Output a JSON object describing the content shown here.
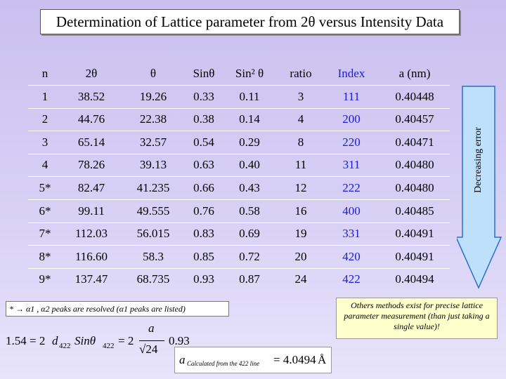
{
  "title": "Determination of Lattice parameter from 2θ versus Intensity Data",
  "table": {
    "header": [
      "n",
      "2θ",
      "θ",
      "Sinθ",
      "Sin² θ",
      "ratio",
      "Index",
      "a (nm)"
    ],
    "rows": [
      [
        "1",
        "38.52",
        "19.26",
        "0.33",
        "0.11",
        "3",
        "111",
        "0.40448"
      ],
      [
        "2",
        "44.76",
        "22.38",
        "0.38",
        "0.14",
        "4",
        "200",
        "0.40457"
      ],
      [
        "3",
        "65.14",
        "32.57",
        "0.54",
        "0.29",
        "8",
        "220",
        "0.40471"
      ],
      [
        "4",
        "78.26",
        "39.13",
        "0.63",
        "0.40",
        "11",
        "311",
        "0.40480"
      ],
      [
        "5*",
        "82.47",
        "41.235",
        "0.66",
        "0.43",
        "12",
        "222",
        "0.40480"
      ],
      [
        "6*",
        "99.11",
        "49.555",
        "0.76",
        "0.58",
        "16",
        "400",
        "0.40485"
      ],
      [
        "7*",
        "112.03",
        "56.015",
        "0.83",
        "0.69",
        "19",
        "331",
        "0.40491"
      ],
      [
        "8*",
        "116.60",
        "58.3",
        "0.85",
        "0.72",
        "20",
        "420",
        "0.40491"
      ],
      [
        "9*",
        "137.47",
        "68.735",
        "0.93",
        "0.87",
        "24",
        "422",
        "0.40494"
      ]
    ]
  },
  "side_label": "Decreasing error",
  "footnote": "* → α1 , α2 peaks are resolved (α1 peaks are listed)",
  "note": "Others methods exist for precise lattice parameter measurement (than just taking a single value)!",
  "formula": {
    "lhs": "1.54 = 2",
    "d": "d",
    "d_sub": "422",
    "sin": "Sinθ",
    "sin_sub": "422",
    "eq": "= 2",
    "num": "a",
    "den": "√24",
    "factor": "0.93"
  },
  "result": {
    "a": "a",
    "sub": "Calculated  from the 422 line",
    "value": "= 4.0494",
    "unit": "Å"
  }
}
